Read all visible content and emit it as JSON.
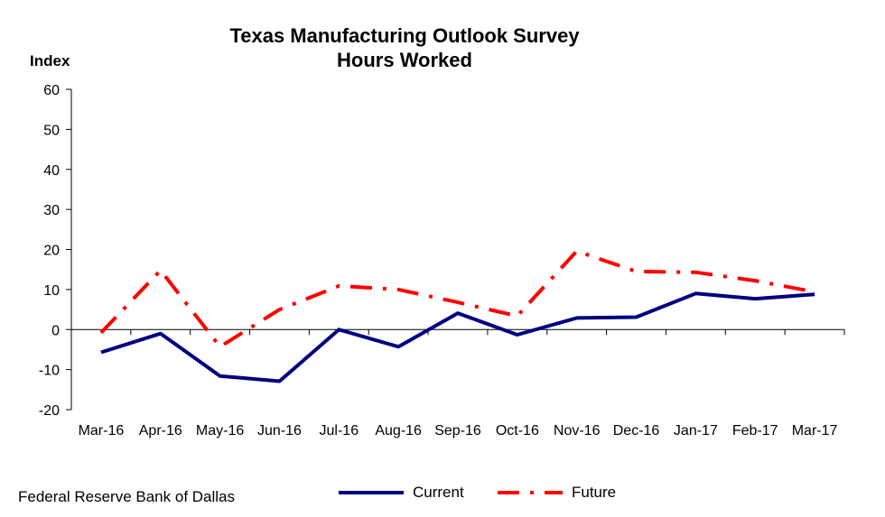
{
  "chart_data": {
    "type": "line",
    "title": "Texas Manufacturing Outlook Survey",
    "subtitle": "Hours Worked",
    "ylabel": "Index",
    "xlabel": "",
    "categories": [
      "Mar-16",
      "Apr-16",
      "May-16",
      "Jun-16",
      "Jul-16",
      "Aug-16",
      "Sep-16",
      "Oct-16",
      "Nov-16",
      "Dec-16",
      "Jan-17",
      "Feb-17",
      "Mar-17"
    ],
    "ylim": [
      -20,
      60
    ],
    "yticks": [
      -20,
      -10,
      0,
      10,
      20,
      30,
      40,
      50,
      60
    ],
    "grid": false,
    "legend_position": "bottom",
    "series": [
      {
        "name": "Current",
        "color": "#000080",
        "style": "solid",
        "values": [
          -5.7,
          -1.0,
          -11.6,
          -12.9,
          0.0,
          -4.3,
          4.1,
          -1.3,
          2.9,
          3.1,
          9.0,
          7.7,
          8.8
        ]
      },
      {
        "name": "Future",
        "color": "#ff0000",
        "style": "dash-dot",
        "values": [
          -0.8,
          14.8,
          -4.3,
          5.0,
          10.9,
          10.0,
          6.8,
          3.4,
          19.6,
          14.5,
          14.3,
          12.2,
          9.4
        ]
      }
    ]
  },
  "source": "Federal Reserve Bank of Dallas"
}
